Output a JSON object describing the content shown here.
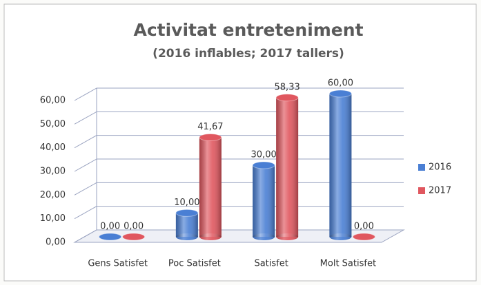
{
  "chart_data": {
    "type": "bar3d",
    "title": "Activitat entreteniment",
    "subtitle": "(2016 inflables; 2017 tallers)",
    "categories": [
      "Gens Satisfet",
      "Poc Satisfet",
      "Satisfet",
      "Molt Satisfet"
    ],
    "series": [
      {
        "name": "2016",
        "color": "#4a7fd4",
        "values": [
          0,
          10,
          30,
          60
        ],
        "value_labels": [
          "0,00",
          "10,00",
          "30,00",
          "60,00"
        ]
      },
      {
        "name": "2017",
        "color": "#e0575f",
        "values": [
          0,
          41.67,
          58.33,
          0
        ],
        "value_labels": [
          "0,00",
          "41,67",
          "58,33",
          "0,00"
        ]
      }
    ],
    "ylim": [
      0,
      60
    ],
    "yticks": [
      {
        "value": 0,
        "label": "0,00"
      },
      {
        "value": 10,
        "label": "10,00"
      },
      {
        "value": 20,
        "label": "20,00"
      },
      {
        "value": 30,
        "label": "30,00"
      },
      {
        "value": 40,
        "label": "40,00"
      },
      {
        "value": 50,
        "label": "50,00"
      },
      {
        "value": 60,
        "label": "60,00"
      }
    ],
    "grid": true,
    "legend": "right"
  }
}
